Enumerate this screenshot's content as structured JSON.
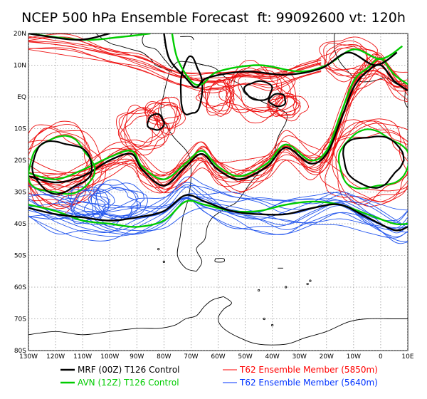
{
  "title": "NCEP 500 hPa Ensemble Forecast  ft: 99092600 vt: 120h",
  "lat_labels": [
    "20N",
    "10N",
    "EQ",
    "10S",
    "20S",
    "30S",
    "40S",
    "50S",
    "60S",
    "70S",
    "80S"
  ],
  "lon_labels": [
    "130W",
    "120W",
    "110W",
    "100W",
    "90W",
    "80W",
    "70W",
    "60W",
    "50W",
    "40W",
    "30W",
    "20W",
    "10W",
    "0",
    "10E"
  ],
  "legend": [
    {
      "label": "MRF (00Z) T126 Control",
      "color": "#000000"
    },
    {
      "label": "AVN (12Z) T126 Control",
      "color": "#00cc00"
    },
    {
      "label": "T62 Ensemble Member (5850m)",
      "color": "#ff0000"
    },
    {
      "label": "T62 Ensemble Member (5640m)",
      "color": "#0033ff"
    }
  ],
  "colors": {
    "mrf": "#000000",
    "avn": "#00cc00",
    "red": "#ee1111",
    "blue": "#2255ee",
    "grid": "#9a9a9a"
  },
  "map": {
    "lon_range": [
      -130,
      10
    ],
    "lat_range": [
      -80,
      20
    ]
  },
  "chart_data": {
    "type": "map",
    "title": "NCEP 500 hPa Ensemble Forecast  ft: 99092600 vt: 120h",
    "projection": "lat-lon",
    "lon_range": [
      -130,
      10
    ],
    "lat_range": [
      -80,
      20
    ],
    "grid": true,
    "series": [
      {
        "name": "MRF (00Z) T126 Control",
        "color": "#000000"
      },
      {
        "name": "AVN (12Z) T126 Control",
        "color": "#00cc00"
      },
      {
        "name": "T62 Ensemble Member (5850m)",
        "color": "#ff0000"
      },
      {
        "name": "T62 Ensemble Member (5640m)",
        "color": "#0033ff"
      }
    ],
    "mrf_5640": [
      [
        -130,
        -35
      ],
      [
        -120,
        -37
      ],
      [
        -110,
        -38
      ],
      [
        -100,
        -39
      ],
      [
        -90,
        -38
      ],
      [
        -80,
        -36
      ],
      [
        -72,
        -31
      ],
      [
        -65,
        -33
      ],
      [
        -55,
        -36
      ],
      [
        -45,
        -37
      ],
      [
        -35,
        -37
      ],
      [
        -25,
        -35
      ],
      [
        -15,
        -34
      ],
      [
        -5,
        -38
      ],
      [
        5,
        -42
      ],
      [
        10,
        -41
      ]
    ],
    "avn_5640": [
      [
        -130,
        -34
      ],
      [
        -120,
        -36
      ],
      [
        -110,
        -39
      ],
      [
        -100,
        -40
      ],
      [
        -90,
        -41
      ],
      [
        -80,
        -39
      ],
      [
        -72,
        -33
      ],
      [
        -65,
        -34
      ],
      [
        -55,
        -36
      ],
      [
        -45,
        -36
      ],
      [
        -35,
        -34
      ],
      [
        -25,
        -33
      ],
      [
        -15,
        -34
      ],
      [
        -5,
        -37
      ],
      [
        5,
        -40
      ],
      [
        10,
        -40
      ]
    ],
    "mrf_5850": [
      [
        -130,
        -25
      ],
      [
        -120,
        -27
      ],
      [
        -110,
        -25
      ],
      [
        -100,
        -20
      ],
      [
        -92,
        -18
      ],
      [
        -88,
        -23
      ],
      [
        -80,
        -28
      ],
      [
        -72,
        -22
      ],
      [
        -66,
        -18
      ],
      [
        -60,
        -23
      ],
      [
        -52,
        -26
      ],
      [
        -42,
        -22
      ],
      [
        -35,
        -16
      ],
      [
        -26,
        -21
      ],
      [
        -20,
        -18
      ],
      [
        -15,
        -8
      ],
      [
        -10,
        3
      ],
      [
        -5,
        8
      ],
      [
        0,
        10
      ],
      [
        5,
        5
      ],
      [
        10,
        2
      ]
    ],
    "avn_5850": [
      [
        -130,
        -24
      ],
      [
        -120,
        -26
      ],
      [
        -110,
        -23
      ],
      [
        -100,
        -19
      ],
      [
        -92,
        -17
      ],
      [
        -88,
        -22
      ],
      [
        -80,
        -26
      ],
      [
        -72,
        -21
      ],
      [
        -66,
        -17
      ],
      [
        -60,
        -22
      ],
      [
        -52,
        -25
      ],
      [
        -42,
        -21
      ],
      [
        -35,
        -15
      ],
      [
        -26,
        -20
      ],
      [
        -20,
        -17
      ],
      [
        -15,
        -6
      ],
      [
        -10,
        5
      ],
      [
        -5,
        9
      ],
      [
        0,
        12
      ],
      [
        5,
        7
      ],
      [
        10,
        4
      ]
    ]
  }
}
